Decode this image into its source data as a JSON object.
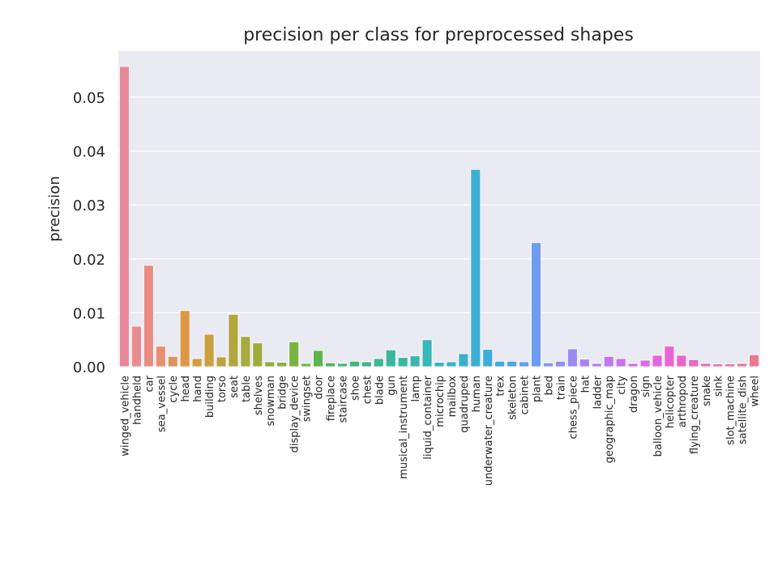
{
  "chart_data": {
    "type": "bar",
    "title": "precision per class for preprocessed shapes",
    "xlabel": "",
    "ylabel": "precision",
    "ylim": [
      0,
      0.0585
    ],
    "yticks": [
      0.0,
      0.01,
      0.02,
      0.03,
      0.04,
      0.05
    ],
    "ytick_labels": [
      "0.00",
      "0.01",
      "0.02",
      "0.03",
      "0.04",
      "0.05"
    ],
    "grid": true,
    "background_color": "#eaeaf2",
    "categories": [
      "winged_vehicle",
      "handheld",
      "car",
      "sea_vessel",
      "cycle",
      "head",
      "hand",
      "building",
      "torso",
      "seat",
      "table",
      "shelves",
      "snowman",
      "bridge",
      "display_device",
      "swingset",
      "door",
      "fireplace",
      "staircase",
      "shoe",
      "chest",
      "blade",
      "gun",
      "musical_instrument",
      "lamp",
      "liquid_container",
      "microchip",
      "mailbox",
      "quadruped",
      "human",
      "underwater_creature",
      "trex",
      "skeleton",
      "cabinet",
      "plant",
      "bed",
      "train",
      "chess_piece",
      "hat",
      "ladder",
      "geographic_map",
      "city",
      "dragon",
      "sign",
      "balloon_vehicle",
      "helicopter",
      "arthropod",
      "flying_creature",
      "snake",
      "sink",
      "slot_machine",
      "satellite_dish",
      "wheel"
    ],
    "values": [
      0.0557,
      0.0075,
      0.0188,
      0.0038,
      0.0019,
      0.0104,
      0.0015,
      0.006,
      0.0018,
      0.0097,
      0.0056,
      0.0044,
      0.0009,
      0.0008,
      0.0046,
      0.0006,
      0.003,
      0.0007,
      0.0006,
      0.001,
      0.0009,
      0.0015,
      0.0031,
      0.0017,
      0.002,
      0.005,
      0.0008,
      0.0009,
      0.0024,
      0.0366,
      0.0032,
      0.001,
      0.001,
      0.0009,
      0.023,
      0.0007,
      0.001,
      0.0033,
      0.0014,
      0.0006,
      0.0019,
      0.0015,
      0.0006,
      0.0012,
      0.0021,
      0.0038,
      0.0021,
      0.0013,
      0.0006,
      0.0005,
      0.0005,
      0.0006,
      0.0022
    ],
    "colors": [
      "#e8899a",
      "#e98b90",
      "#e98c83",
      "#e88f72",
      "#e3925e",
      "#dd9844",
      "#d39d3f",
      "#c8a03e",
      "#bda33e",
      "#b2a63e",
      "#a8a93e",
      "#9dab3d",
      "#92ad3d",
      "#86af3d",
      "#79b23e",
      "#6cb443",
      "#5db54d",
      "#4db659",
      "#42b66a",
      "#3fb67a",
      "#3eb686",
      "#3db692",
      "#3cb69c",
      "#3bb6a5",
      "#3bb6ae",
      "#3ab6b6",
      "#3ab5be",
      "#3ab4c5",
      "#3bb2cc",
      "#3cb0d3",
      "#3eaddb",
      "#42a9e3",
      "#4ea5ea",
      "#5ea0ee",
      "#6f9bf0",
      "#7f96f1",
      "#8d90f1",
      "#9a8af1",
      "#a784f0",
      "#b37ef0",
      "#bf78ef",
      "#ca72ee",
      "#d46dea",
      "#dd69e4",
      "#e466dd",
      "#e866d3",
      "#e967c8",
      "#e969bd",
      "#e96cb2",
      "#e96fa8",
      "#e8739e",
      "#e87796",
      "#e87b8f"
    ]
  }
}
